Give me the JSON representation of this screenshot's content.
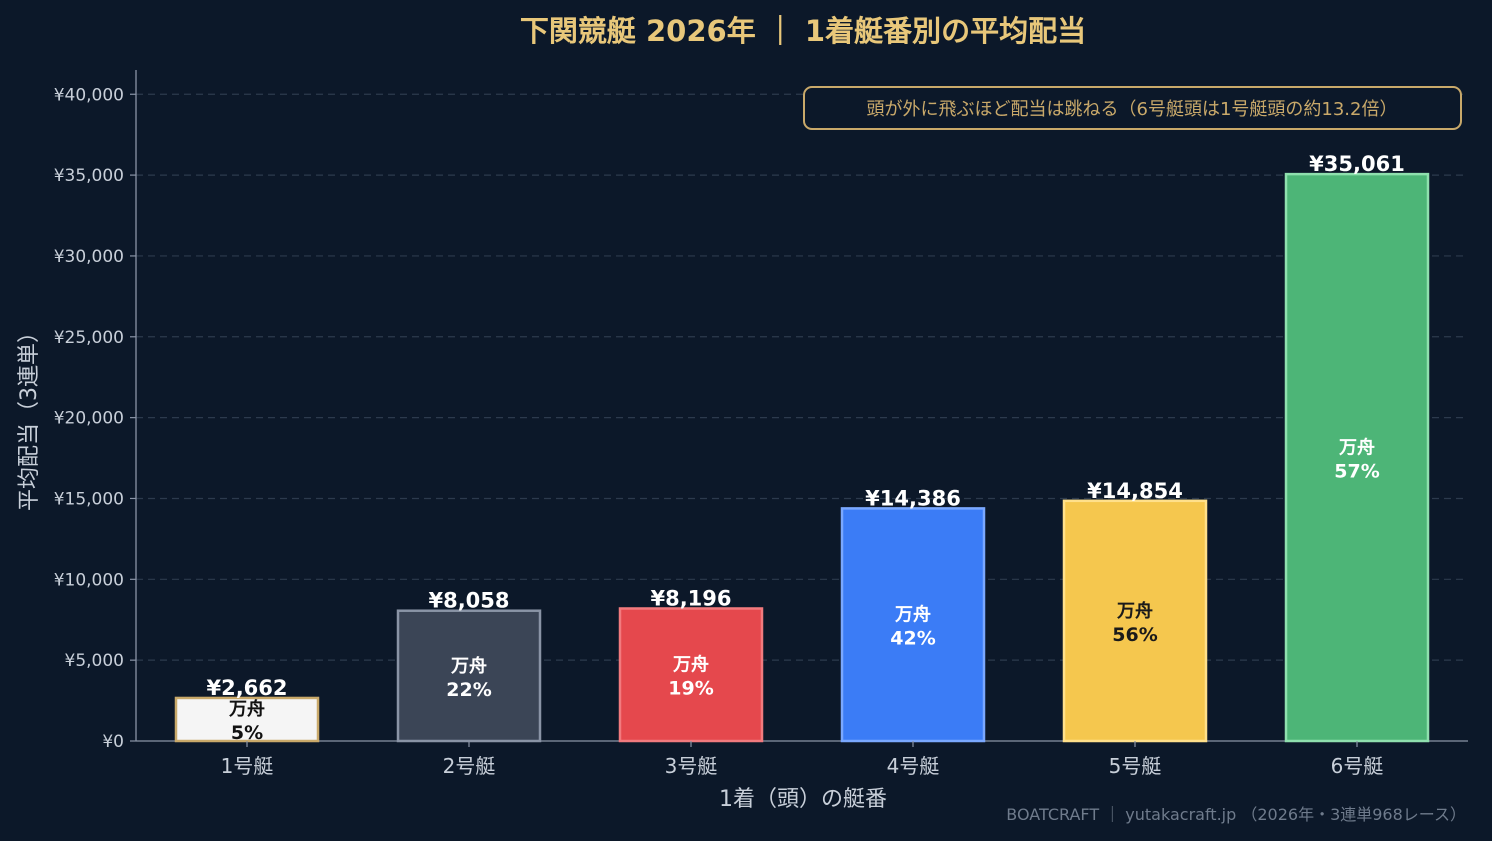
{
  "chart_data": {
    "type": "bar",
    "title": "下関競艇 2026年 ｜ 1着艇番別の平均配当",
    "xlabel": "1着（頭）の艇番",
    "ylabel": "平均配当（3連単）",
    "categories": [
      "1号艇",
      "2号艇",
      "3号艇",
      "4号艇",
      "5号艇",
      "6号艇"
    ],
    "values": [
      2662,
      8058,
      8196,
      14386,
      14854,
      35061
    ],
    "value_labels": [
      "¥2,662",
      "¥8,058",
      "¥8,196",
      "¥14,386",
      "¥14,854",
      "¥35,061"
    ],
    "bar_inner_label": "万舟",
    "manshu_percent_labels": [
      "5%",
      "22%",
      "19%",
      "42%",
      "56%",
      "57%"
    ],
    "manshu_percent": [
      5,
      22,
      19,
      42,
      56,
      57
    ],
    "ylim": [
      0,
      41500
    ],
    "yticks": [
      0,
      5000,
      10000,
      15000,
      20000,
      25000,
      30000,
      35000,
      40000
    ],
    "ytick_labels": [
      "¥0",
      "¥5,000",
      "¥10,000",
      "¥15,000",
      "¥20,000",
      "¥25,000",
      "¥30,000",
      "¥35,000",
      "¥40,000"
    ],
    "grid": true,
    "bar_colors": [
      "#f5f5f5",
      "#3b4556",
      "#e5484d",
      "#3b7cf6",
      "#f5c74e",
      "#4db577"
    ],
    "bar_edge_colors": [
      "#c9a96a",
      "#8a94a6",
      "#f27a7e",
      "#7aa8ff",
      "#ffe08a",
      "#8fe0ae"
    ],
    "inner_label_colors": [
      "#111111",
      "#ffffff",
      "#ffffff",
      "#ffffff",
      "#1a1a1a",
      "#ffffff"
    ],
    "annotation": "頭が外に飛ぶほど配当は跳ねる（6号艇頭は1号艇頭の約13.2倍）",
    "footer": "BOATCRAFT ｜ yutakacraft.jp （2026年・3連単968レース）"
  },
  "colors": {
    "background": "#0c1829",
    "title": "#e8c77a",
    "axis_text": "#c8cfd9",
    "grid": "#2c3a4d",
    "annotation_border": "#c9a96a",
    "annotation_text": "#c9a96a",
    "value_label": "#ffffff",
    "footer": "#6f7b8c"
  }
}
